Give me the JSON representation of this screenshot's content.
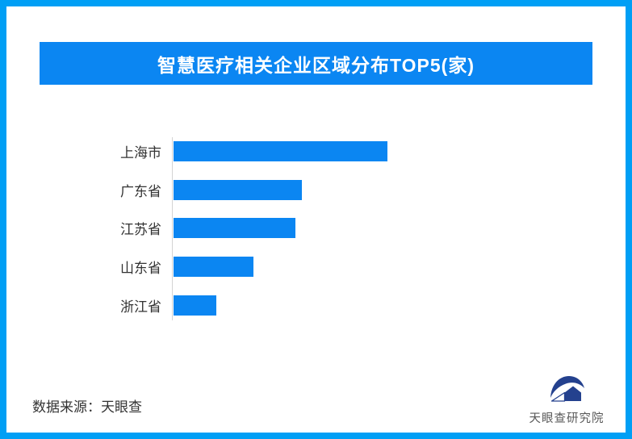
{
  "page": {
    "background": "#ffffff",
    "border_color": "#009ff5"
  },
  "header": {
    "title": "智慧医疗相关企业区域分布TOP5(家)",
    "bg_color": "#0b86f2",
    "text_color": "#ffffff"
  },
  "chart_data": {
    "type": "bar",
    "orientation": "horizontal",
    "title": "智慧医疗相关企业区域分布TOP5(家)",
    "categories": [
      "上海市",
      "广东省",
      "江苏省",
      "山东省",
      "浙江省"
    ],
    "values": [
      265,
      159,
      151,
      99,
      53
    ],
    "xlabel": "",
    "ylabel": "",
    "xlim": [
      0,
      280
    ],
    "grid": false,
    "legend": false,
    "value_labels_shown": false,
    "bar_color": "#0b86f2",
    "axis_line_color": "#d4d4d4",
    "label_color": "#333333"
  },
  "footer": {
    "source_text": "数据来源：天眼查",
    "brand": {
      "name": "天眼查研究院",
      "text_color": "#595959",
      "logo_color": "#24418e",
      "logo_icon": "tianyancha-swoosh-house-icon"
    }
  }
}
